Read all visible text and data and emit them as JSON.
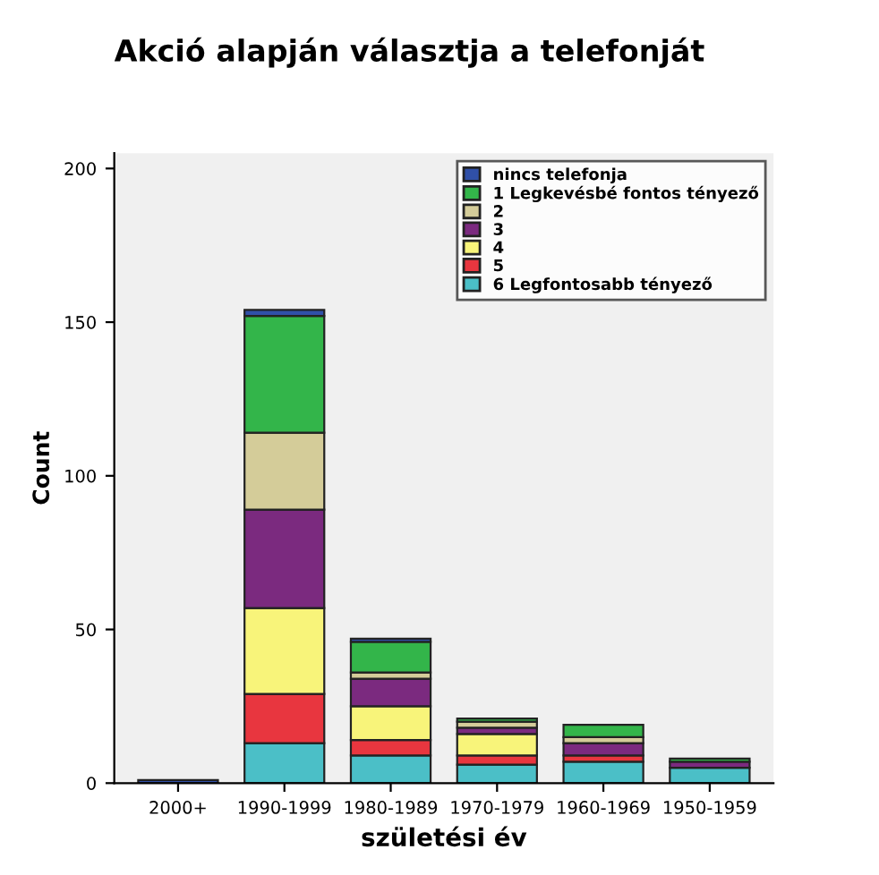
{
  "chart_data": {
    "type": "bar",
    "stacked": true,
    "title": "Akció alapján választja a telefonját",
    "xlabel": "születési év",
    "ylabel": "Count",
    "categories": [
      "2000+",
      "1990-1999",
      "1980-1989",
      "1970-1979",
      "1960-1969",
      "1950-1959"
    ],
    "series": [
      {
        "name": "6 Legfontosabb tényező",
        "color": "#4bbfc7",
        "values": [
          0,
          13,
          9,
          6,
          7,
          5
        ]
      },
      {
        "name": "5",
        "color": "#e8363f",
        "values": [
          0,
          16,
          5,
          3,
          2,
          0
        ]
      },
      {
        "name": "4",
        "color": "#f8f47a",
        "values": [
          0,
          28,
          11,
          7,
          0,
          0
        ]
      },
      {
        "name": "3",
        "color": "#7b2a7f",
        "values": [
          0,
          32,
          9,
          2,
          4,
          2
        ]
      },
      {
        "name": "2",
        "color": "#d4cc99",
        "values": [
          0,
          25,
          2,
          2,
          2,
          0
        ]
      },
      {
        "name": "1 Legkevésbé fontos tényező",
        "color": "#33b54a",
        "values": [
          0,
          38,
          10,
          1,
          4,
          1
        ]
      },
      {
        "name": "nincs telefonja",
        "color": "#3050a8",
        "values": [
          1,
          2,
          1,
          0,
          0,
          0
        ]
      }
    ],
    "ylim": [
      0,
      205
    ],
    "yticks": [
      0,
      50,
      100,
      150,
      200
    ],
    "grid": false,
    "legend": "top right"
  }
}
